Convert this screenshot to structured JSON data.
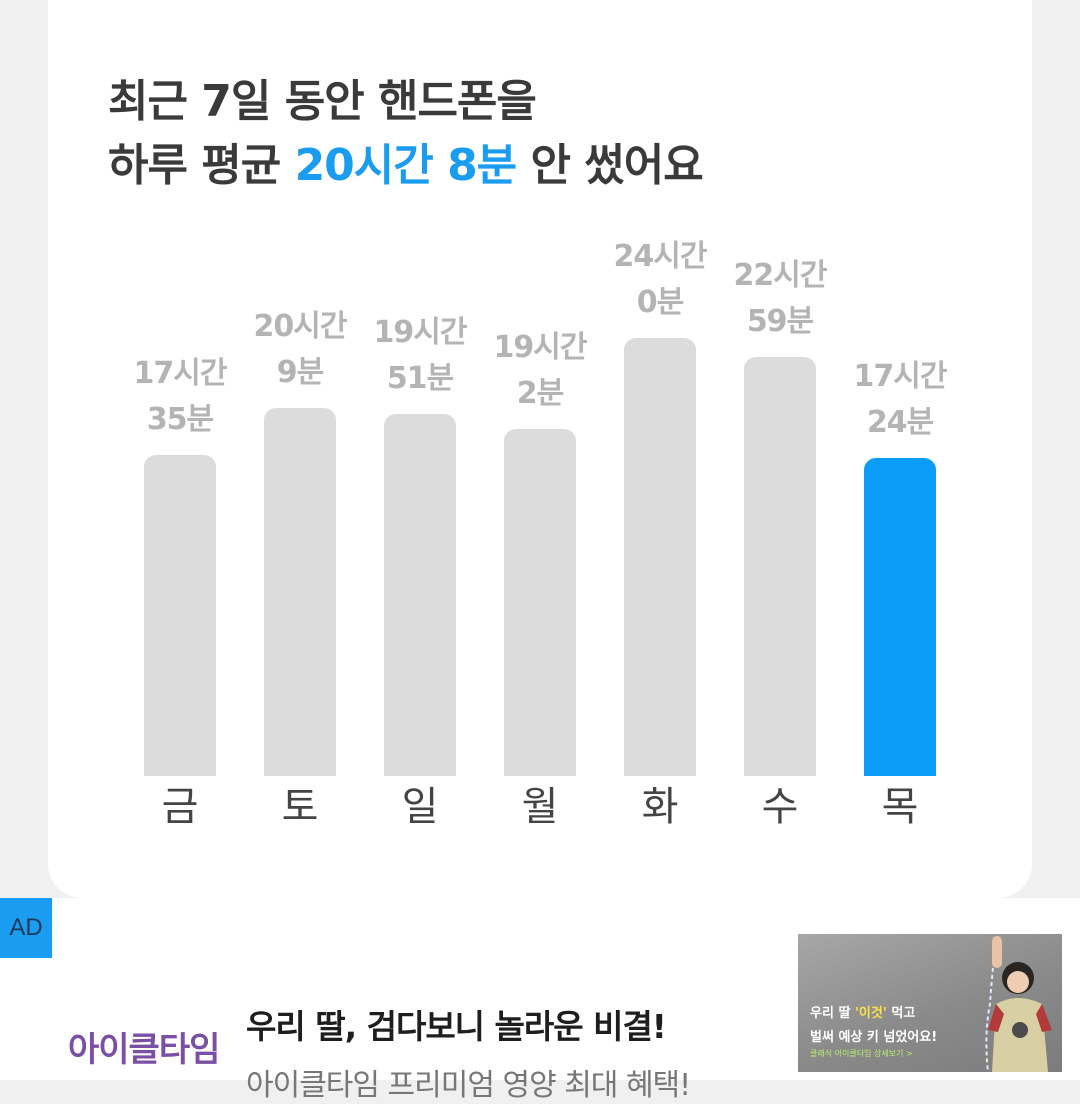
{
  "headline": {
    "line1": "최근 7일 동안 핸드폰을",
    "line2_prefix": "하루 평균 ",
    "line2_highlight": "20시간 8분",
    "line2_suffix": " 안 썼어요"
  },
  "colors": {
    "accent": "#1a9cf0",
    "bar_default": "#dcdcdc",
    "bar_current": "#0a9cf7",
    "value_text": "#b4b4b4",
    "ad_badge": "#1a9cf0",
    "ad_logo": "#7a4fa6"
  },
  "chart_data": {
    "type": "bar",
    "categories": [
      "금",
      "토",
      "일",
      "월",
      "화",
      "수",
      "목"
    ],
    "value_labels": [
      [
        "17시간",
        "35분"
      ],
      [
        "20시간",
        "9분"
      ],
      [
        "19시간",
        "51분"
      ],
      [
        "19시간",
        "2분"
      ],
      [
        "24시간",
        "0분"
      ],
      [
        "22시간",
        "59분"
      ],
      [
        "17시간",
        "24분"
      ]
    ],
    "values_minutes": [
      1055,
      1209,
      1191,
      1142,
      1440,
      1379,
      1044
    ],
    "highlighted_index": 6,
    "ylim": [
      0,
      1440
    ]
  },
  "ad": {
    "badge": "AD",
    "logo": "아이클타임",
    "title": "우리 딸, 검다보니 놀라운 비결!",
    "description": "아이클타임 프리미엄 영양 최대 혜택!",
    "thumbnail_line1_prefix": "우리 딸 ",
    "thumbnail_line1_highlight": "'이것'",
    "thumbnail_line1_suffix": " 먹고",
    "thumbnail_line2": "벌써 예상 키 넘었어요!",
    "thumbnail_small": "클래식 아이클타임 상세보기 >"
  }
}
